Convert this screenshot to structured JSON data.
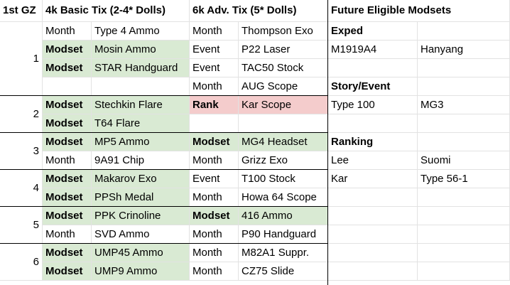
{
  "header": {
    "gz": "1st GZ",
    "basic": "4k Basic Tix (2-4* Dolls)",
    "adv": "6k Adv. Tix (5* Dolls)",
    "future": "Future Eligible Modsets"
  },
  "groups": [
    {
      "gz": "1",
      "rows": [
        {
          "t1": "Month",
          "i1": "Type 4 Ammo",
          "t2": "Month",
          "i2": "Thompson Exo"
        },
        {
          "t1": "Modset",
          "i1": "Mosin Ammo",
          "t2": "Event",
          "i2": "P22 Laser"
        },
        {
          "t1": "Modset",
          "i1": "STAR Handguard",
          "t2": "Event",
          "i2": "TAC50 Stock"
        },
        {
          "t1": "",
          "i1": "",
          "t2": "Month",
          "i2": "AUG Scope"
        }
      ]
    },
    {
      "gz": "2",
      "rows": [
        {
          "t1": "Modset",
          "i1": "Stechkin Flare",
          "t2": "Rank",
          "i2": "Kar Scope"
        },
        {
          "t1": "Modset",
          "i1": "T64 Flare",
          "t2": "",
          "i2": ""
        }
      ]
    },
    {
      "gz": "3",
      "rows": [
        {
          "t1": "Modset",
          "i1": "MP5 Ammo",
          "t2": "Modset",
          "i2": "MG4 Headset"
        },
        {
          "t1": "Month",
          "i1": "9A91 Chip",
          "t2": "Month",
          "i2": "Grizz Exo"
        }
      ]
    },
    {
      "gz": "4",
      "rows": [
        {
          "t1": "Modset",
          "i1": "Makarov Exo",
          "t2": "Event",
          "i2": "T100 Stock"
        },
        {
          "t1": "Modset",
          "i1": "PPSh Medal",
          "t2": "Month",
          "i2": "Howa 64 Scope"
        }
      ]
    },
    {
      "gz": "5",
      "rows": [
        {
          "t1": "Modset",
          "i1": "PPK Crinoline",
          "t2": "Modset",
          "i2": "416 Ammo"
        },
        {
          "t1": "Month",
          "i1": "SVD Ammo",
          "t2": "Month",
          "i2": "P90 Handguard"
        }
      ]
    },
    {
      "gz": "6",
      "rows": [
        {
          "t1": "Modset",
          "i1": "UMP45 Ammo",
          "t2": "Month",
          "i2": "M82A1 Suppr."
        },
        {
          "t1": "Modset",
          "i1": "UMP9 Ammo",
          "t2": "Month",
          "i2": "CZ75 Slide"
        }
      ]
    }
  ],
  "future_rows": [
    {
      "a": "Exped",
      "b": "",
      "bold": true
    },
    {
      "a": "M1919A4",
      "b": "Hanyang",
      "bold": false
    },
    {
      "a": "",
      "b": "",
      "bold": false
    },
    {
      "a": "Story/Event",
      "b": "",
      "bold": true
    },
    {
      "a": "Type 100",
      "b": "MG3",
      "bold": false
    },
    {
      "a": "",
      "b": "",
      "bold": false
    },
    {
      "a": "Ranking",
      "b": "",
      "bold": true
    },
    {
      "a": "Lee",
      "b": "Suomi",
      "bold": false
    },
    {
      "a": "Kar",
      "b": "Type 56-1",
      "bold": false
    },
    {
      "a": "",
      "b": "",
      "bold": false
    },
    {
      "a": "",
      "b": "",
      "bold": false
    },
    {
      "a": "",
      "b": "",
      "bold": false
    },
    {
      "a": "",
      "b": "",
      "bold": false
    },
    {
      "a": "",
      "b": "",
      "bold": false
    }
  ],
  "colors": {
    "modset_fill": "#d9ead3",
    "rank_fill": "#f4cccc"
  }
}
